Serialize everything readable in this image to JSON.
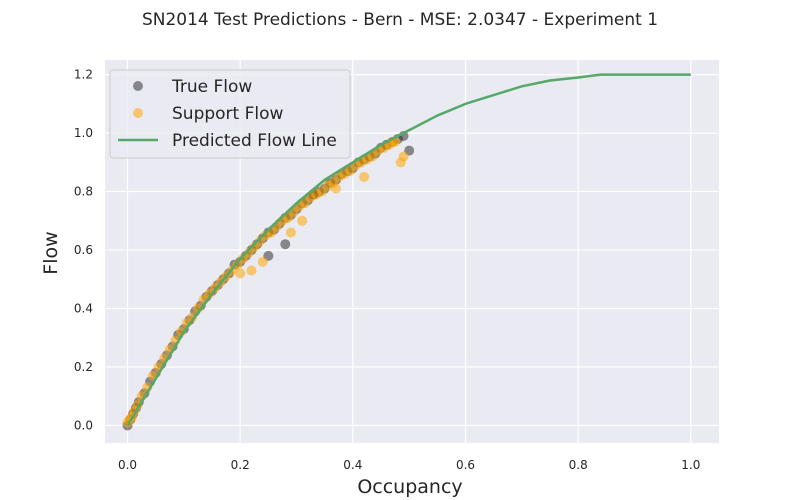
{
  "chart_data": {
    "type": "scatter",
    "title": "SN2014 Test Predictions - Bern - MSE: 2.0347 - Experiment 1",
    "xlabel": "Occupancy",
    "ylabel": "Flow",
    "xlim": [
      -0.04,
      1.05
    ],
    "ylim": [
      -0.06,
      1.25
    ],
    "xticks": [
      0.0,
      0.2,
      0.4,
      0.6,
      0.8,
      1.0
    ],
    "yticks": [
      0.0,
      0.2,
      0.4,
      0.6,
      0.8,
      1.0,
      1.2
    ],
    "xtick_labels": [
      "0.0",
      "0.2",
      "0.4",
      "0.6",
      "0.8",
      "1.0"
    ],
    "ytick_labels": [
      "0.0",
      "0.2",
      "0.4",
      "0.6",
      "0.8",
      "1.0",
      "1.2"
    ],
    "grid": true,
    "background": "#EAEAF2",
    "legend_position": "top-left",
    "series": [
      {
        "name": "True Flow",
        "kind": "scatter",
        "color": "#222222",
        "opacity": 0.5,
        "x": [
          0.0,
          0.005,
          0.01,
          0.015,
          0.02,
          0.03,
          0.04,
          0.05,
          0.06,
          0.07,
          0.08,
          0.09,
          0.1,
          0.11,
          0.12,
          0.13,
          0.14,
          0.15,
          0.16,
          0.17,
          0.18,
          0.19,
          0.2,
          0.21,
          0.22,
          0.23,
          0.24,
          0.25,
          0.26,
          0.27,
          0.28,
          0.29,
          0.3,
          0.31,
          0.32,
          0.33,
          0.34,
          0.35,
          0.36,
          0.37,
          0.38,
          0.39,
          0.4,
          0.41,
          0.42,
          0.43,
          0.44,
          0.45,
          0.46,
          0.47,
          0.48,
          0.49,
          0.5,
          0.25,
          0.28,
          0.33
        ],
        "y": [
          0.0,
          0.02,
          0.04,
          0.06,
          0.08,
          0.11,
          0.15,
          0.18,
          0.21,
          0.24,
          0.27,
          0.31,
          0.33,
          0.36,
          0.39,
          0.41,
          0.44,
          0.46,
          0.48,
          0.5,
          0.52,
          0.55,
          0.56,
          0.58,
          0.6,
          0.62,
          0.64,
          0.66,
          0.67,
          0.69,
          0.71,
          0.72,
          0.74,
          0.76,
          0.77,
          0.79,
          0.8,
          0.81,
          0.83,
          0.84,
          0.86,
          0.87,
          0.88,
          0.9,
          0.91,
          0.92,
          0.93,
          0.95,
          0.96,
          0.97,
          0.98,
          0.99,
          0.94,
          0.58,
          0.62,
          0.79
        ]
      },
      {
        "name": "Support Flow",
        "kind": "scatter",
        "color": "#FFA500",
        "opacity": 0.55,
        "x": [
          0.0,
          0.004,
          0.008,
          0.012,
          0.018,
          0.025,
          0.035,
          0.045,
          0.055,
          0.065,
          0.075,
          0.085,
          0.095,
          0.105,
          0.115,
          0.125,
          0.135,
          0.145,
          0.155,
          0.165,
          0.175,
          0.185,
          0.195,
          0.205,
          0.215,
          0.225,
          0.235,
          0.245,
          0.255,
          0.265,
          0.275,
          0.285,
          0.295,
          0.305,
          0.315,
          0.325,
          0.335,
          0.345,
          0.355,
          0.365,
          0.375,
          0.385,
          0.395,
          0.405,
          0.415,
          0.425,
          0.435,
          0.445,
          0.455,
          0.465,
          0.475,
          0.485,
          0.49,
          0.2,
          0.22,
          0.24,
          0.29,
          0.31,
          0.37,
          0.42,
          0.47
        ],
        "y": [
          0.01,
          0.02,
          0.03,
          0.05,
          0.07,
          0.1,
          0.13,
          0.17,
          0.2,
          0.23,
          0.26,
          0.29,
          0.32,
          0.35,
          0.37,
          0.4,
          0.43,
          0.45,
          0.47,
          0.49,
          0.51,
          0.53,
          0.55,
          0.57,
          0.59,
          0.61,
          0.63,
          0.65,
          0.66,
          0.68,
          0.7,
          0.71,
          0.73,
          0.75,
          0.76,
          0.78,
          0.79,
          0.8,
          0.82,
          0.83,
          0.85,
          0.86,
          0.87,
          0.89,
          0.9,
          0.91,
          0.92,
          0.94,
          0.95,
          0.96,
          0.97,
          0.9,
          0.92,
          0.52,
          0.53,
          0.56,
          0.66,
          0.7,
          0.81,
          0.85,
          0.97
        ]
      },
      {
        "name": "Predicted Flow Line",
        "kind": "line",
        "color": "#55A868",
        "x": [
          0.0,
          0.05,
          0.1,
          0.15,
          0.2,
          0.25,
          0.3,
          0.35,
          0.4,
          0.45,
          0.5,
          0.55,
          0.6,
          0.65,
          0.7,
          0.75,
          0.8,
          0.84,
          0.9,
          0.95,
          1.0
        ],
        "y": [
          0.0,
          0.16,
          0.32,
          0.45,
          0.57,
          0.67,
          0.76,
          0.84,
          0.9,
          0.96,
          1.01,
          1.06,
          1.1,
          1.13,
          1.16,
          1.18,
          1.19,
          1.2,
          1.2,
          1.2,
          1.2
        ]
      }
    ]
  }
}
